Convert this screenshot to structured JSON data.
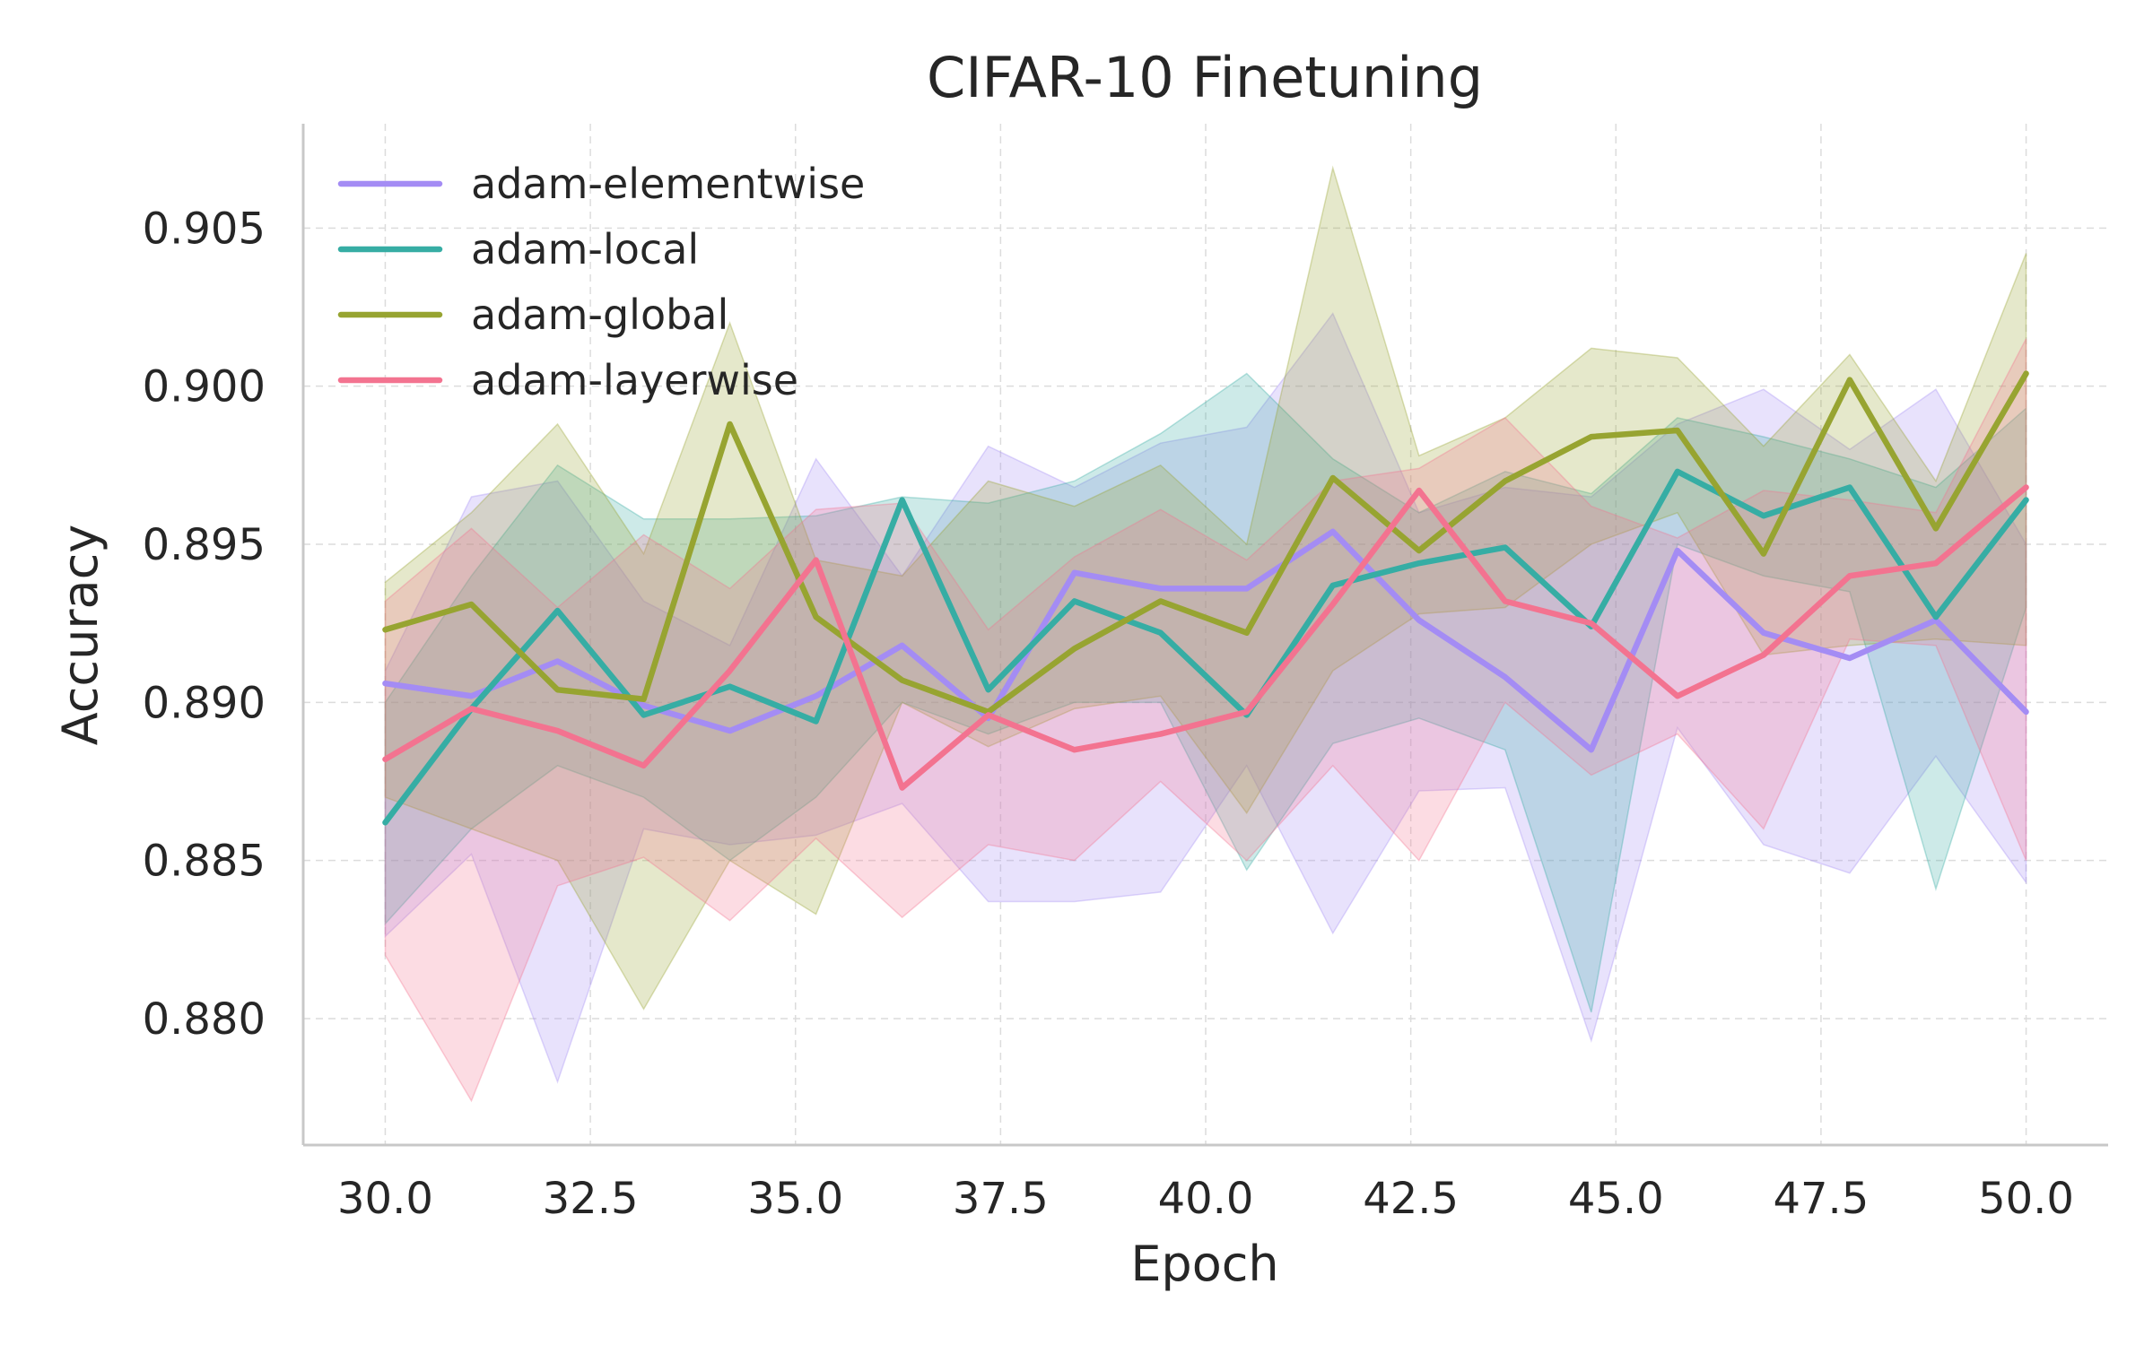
{
  "chart_data": {
    "type": "line",
    "title": "CIFAR-10 Finetuning",
    "xlabel": "Epoch",
    "ylabel": "Accuracy",
    "xlim": [
      29.0,
      51.0
    ],
    "ylim": [
      0.876,
      0.9083
    ],
    "xticks": [
      30.0,
      32.5,
      35.0,
      37.5,
      40.0,
      42.5,
      45.0,
      47.5,
      50.0
    ],
    "xtick_labels": [
      "30.0",
      "32.5",
      "35.0",
      "37.5",
      "40.0",
      "42.5",
      "45.0",
      "47.5",
      "50.0"
    ],
    "yticks": [
      0.88,
      0.885,
      0.89,
      0.895,
      0.9,
      0.905
    ],
    "ytick_labels": [
      "0.880",
      "0.885",
      "0.890",
      "0.895",
      "0.900",
      "0.905"
    ],
    "grid": true,
    "legend_position": "top-left",
    "x": [
      30.0,
      31.05,
      32.1,
      33.15,
      34.2,
      35.25,
      36.3,
      37.35,
      38.4,
      39.45,
      40.5,
      41.55,
      42.6,
      43.65,
      44.7,
      45.75,
      46.8,
      47.85,
      48.9,
      50.0
    ],
    "series": [
      {
        "name": "adam-elementwise",
        "color": "#a48cf4",
        "values": [
          0.8906,
          0.8902,
          0.8913,
          0.8899,
          0.8891,
          0.8902,
          0.8918,
          0.8895,
          0.8941,
          0.8936,
          0.8936,
          0.8954,
          0.8926,
          0.8908,
          0.8885,
          0.8948,
          0.8922,
          0.8914,
          0.8926,
          0.8897
        ],
        "lower": [
          0.8826,
          0.8852,
          0.878,
          0.886,
          0.8855,
          0.8858,
          0.8868,
          0.8837,
          0.8837,
          0.884,
          0.888,
          0.8827,
          0.8872,
          0.8873,
          0.8793,
          0.8892,
          0.8855,
          0.8846,
          0.8883,
          0.8843
        ],
        "upper": [
          0.891,
          0.8965,
          0.897,
          0.8932,
          0.8918,
          0.8977,
          0.894,
          0.8981,
          0.8968,
          0.8982,
          0.8987,
          0.9023,
          0.896,
          0.8968,
          0.8965,
          0.8988,
          0.8999,
          0.898,
          0.8999,
          0.895
        ]
      },
      {
        "name": "adam-local",
        "color": "#36ada4",
        "values": [
          0.8862,
          0.8898,
          0.8929,
          0.8896,
          0.8905,
          0.8894,
          0.8964,
          0.8904,
          0.8932,
          0.8922,
          0.8896,
          0.8937,
          0.8944,
          0.8949,
          0.8924,
          0.8973,
          0.8959,
          0.8968,
          0.8927,
          0.8964
        ],
        "lower": [
          0.883,
          0.886,
          0.888,
          0.887,
          0.885,
          0.887,
          0.89,
          0.889,
          0.89,
          0.89,
          0.8847,
          0.8887,
          0.8895,
          0.8885,
          0.8802,
          0.895,
          0.894,
          0.8935,
          0.8841,
          0.893
        ],
        "upper": [
          0.89,
          0.894,
          0.8975,
          0.8958,
          0.8958,
          0.8959,
          0.8965,
          0.8963,
          0.897,
          0.8985,
          0.9004,
          0.8977,
          0.896,
          0.8973,
          0.8966,
          0.899,
          0.8984,
          0.8977,
          0.8968,
          0.8993
        ]
      },
      {
        "name": "adam-global",
        "color": "#97a431",
        "values": [
          0.8923,
          0.8931,
          0.8904,
          0.8901,
          0.8988,
          0.8927,
          0.8907,
          0.8897,
          0.8917,
          0.8932,
          0.8922,
          0.8971,
          0.8948,
          0.897,
          0.8984,
          0.8986,
          0.8947,
          0.9002,
          0.8955,
          0.9004
        ],
        "lower": [
          0.887,
          0.886,
          0.885,
          0.8803,
          0.885,
          0.8833,
          0.89,
          0.8886,
          0.8898,
          0.8902,
          0.8865,
          0.891,
          0.8928,
          0.893,
          0.895,
          0.896,
          0.8915,
          0.8918,
          0.892,
          0.8918
        ],
        "upper": [
          0.8938,
          0.896,
          0.8988,
          0.8947,
          0.902,
          0.8945,
          0.894,
          0.897,
          0.8962,
          0.8975,
          0.895,
          0.9069,
          0.8978,
          0.899,
          0.9012,
          0.9009,
          0.8981,
          0.901,
          0.897,
          0.9042
        ]
      },
      {
        "name": "adam-layerwise",
        "color": "#f37390",
        "values": [
          0.8882,
          0.8898,
          0.8891,
          0.888,
          0.891,
          0.8945,
          0.8873,
          0.8896,
          0.8885,
          0.889,
          0.8897,
          0.8931,
          0.8967,
          0.8932,
          0.8925,
          0.8902,
          0.8915,
          0.894,
          0.8944,
          0.8968
        ],
        "lower": [
          0.882,
          0.8774,
          0.8842,
          0.8851,
          0.8831,
          0.8857,
          0.8832,
          0.8855,
          0.885,
          0.8875,
          0.885,
          0.888,
          0.885,
          0.89,
          0.8877,
          0.889,
          0.886,
          0.892,
          0.8918,
          0.885
        ],
        "upper": [
          0.8932,
          0.8955,
          0.893,
          0.8953,
          0.8936,
          0.8961,
          0.8963,
          0.8923,
          0.8946,
          0.8961,
          0.8945,
          0.897,
          0.8974,
          0.899,
          0.8962,
          0.8952,
          0.8967,
          0.8964,
          0.896,
          0.9015
        ]
      }
    ]
  }
}
